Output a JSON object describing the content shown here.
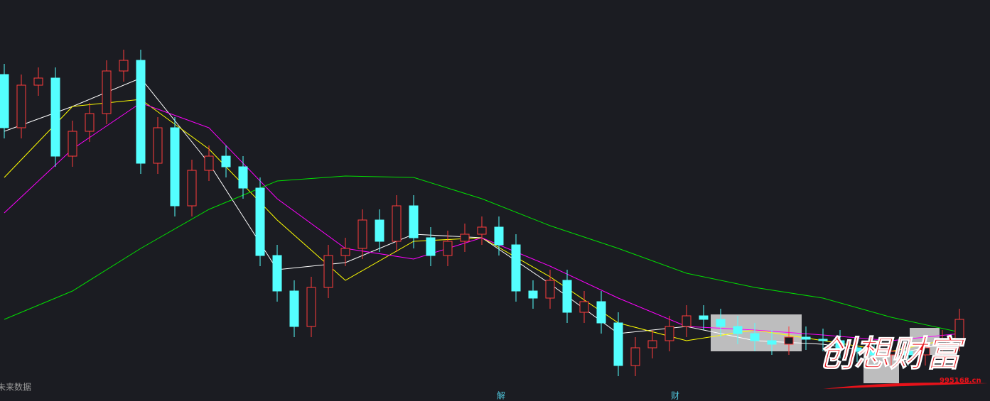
{
  "chart_data": {
    "type": "candlestick",
    "background": "#1b1c22",
    "up_color": "#ff3c3c",
    "down_color": "#54ffff",
    "ylim": [
      0,
      56.5
    ],
    "open": [
      46,
      38.5,
      44.5,
      45.5,
      34.5,
      38,
      40.5,
      46.5,
      48,
      33.5,
      38.5,
      27.5,
      32.5,
      34.5,
      33,
      30,
      20.5,
      15.5,
      10.5,
      16,
      20.5,
      21.5,
      25.5,
      22.5,
      27.5,
      23,
      20.5,
      22.5,
      23.5,
      24.5,
      22,
      15.5,
      14.5,
      17,
      12.5,
      14,
      11,
      5,
      7.5,
      8.5,
      10.5,
      12,
      11.5,
      10.5,
      9.5,
      8.5,
      8,
      9,
      8.7,
      8.5,
      7.5,
      7,
      6.5,
      7,
      6.5,
      7.5,
      8.5
    ],
    "high": [
      47.5,
      46,
      47,
      47,
      39.5,
      42,
      48,
      49.5,
      49.5,
      40,
      40,
      34,
      36,
      36,
      34.5,
      31.5,
      22,
      17,
      17.5,
      22,
      23,
      27,
      27,
      29,
      29,
      24.5,
      24,
      25,
      26,
      26,
      23.5,
      17,
      18.5,
      18.5,
      15.5,
      15.5,
      12.5,
      9,
      10,
      12,
      13.5,
      13.5,
      13,
      12,
      11,
      10,
      10.5,
      10.5,
      10.2,
      10,
      9,
      8.5,
      8.5,
      8.5,
      9,
      10,
      13
    ],
    "low": [
      37,
      37,
      43,
      33,
      33,
      36.5,
      39,
      45,
      32,
      32,
      26,
      26,
      31,
      31.5,
      28.5,
      19,
      14,
      9,
      9,
      14.5,
      19,
      20,
      21,
      21,
      21.5,
      19,
      19,
      21,
      22,
      20.5,
      14,
      13,
      13,
      11,
      11,
      9.5,
      3.5,
      3.5,
      6,
      7,
      9,
      10,
      9,
      8,
      7,
      6.5,
      6.5,
      7.2,
      7,
      6,
      5.5,
      5,
      5,
      5,
      5,
      6,
      7
    ],
    "close": [
      38.5,
      44.5,
      45.5,
      34.5,
      38,
      40.5,
      46.5,
      48,
      33.5,
      38.5,
      27.5,
      32.5,
      34.5,
      33,
      30,
      20.5,
      15.5,
      10.5,
      16,
      20.5,
      21.5,
      25.5,
      22.5,
      27.5,
      23,
      20.5,
      22.5,
      23.5,
      24.5,
      22,
      15.5,
      14.5,
      17,
      12.5,
      14,
      11,
      5,
      7.5,
      8.5,
      10.5,
      12,
      11.5,
      10.5,
      9.5,
      8.5,
      8,
      9,
      8.7,
      8.5,
      7.5,
      7,
      6.5,
      7,
      6.5,
      7.5,
      8.5,
      11.5
    ],
    "lines": [
      {
        "color": "#ffffff",
        "x": [
          0,
          4,
          8,
          12,
          16,
          20,
          24,
          28,
          32,
          36,
          40,
          44,
          48,
          52,
          56
        ],
        "values": [
          38,
          41.5,
          45.5,
          33.5,
          18.5,
          19.5,
          23.5,
          23,
          16.5,
          9.5,
          10.5,
          8.5,
          8,
          6.5,
          8.5
        ]
      },
      {
        "color": "#ffff00",
        "x": [
          0,
          4,
          8,
          12,
          16,
          20,
          24,
          28,
          32,
          36,
          40,
          44,
          48,
          52,
          56
        ],
        "values": [
          31.5,
          41.5,
          42.5,
          35.5,
          25.5,
          17,
          22.5,
          23,
          17.5,
          11,
          8.5,
          10,
          8.5,
          7,
          9
        ]
      },
      {
        "color": "#ff00ff",
        "x": [
          0,
          4,
          8,
          12,
          16,
          20,
          24,
          28,
          32,
          36,
          40,
          44,
          48,
          52,
          56
        ],
        "values": [
          26.5,
          35.5,
          42,
          38.5,
          28.5,
          21.5,
          20,
          23,
          19,
          14.5,
          10.5,
          10,
          9.3,
          8.5,
          9.5
        ]
      },
      {
        "color": "#00e000",
        "x": [
          0,
          4,
          8,
          12,
          16,
          20,
          24,
          28,
          32,
          36,
          40,
          44,
          48,
          52,
          56
        ],
        "values": [
          11.5,
          15.5,
          21.5,
          27,
          31,
          31.7,
          31.5,
          28.5,
          24.7,
          21.5,
          18,
          16,
          14.5,
          11.8,
          9.7
        ]
      }
    ],
    "annotations": [
      "未来数据",
      "解",
      "财"
    ],
    "watermark": "创想财富",
    "watermark_site": "995168.cn"
  }
}
